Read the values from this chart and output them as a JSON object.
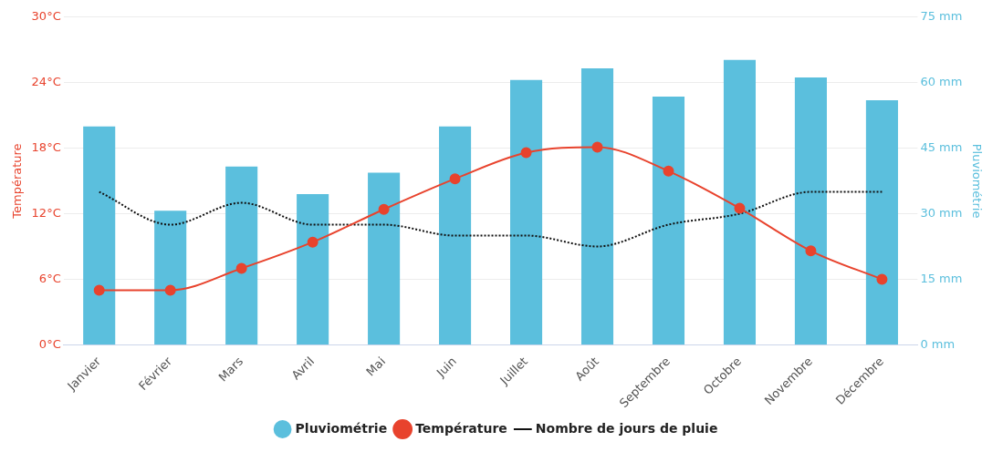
{
  "chart_data": {
    "type": "bar",
    "categories": [
      "Janvier",
      "Février",
      "Mars",
      "Avril",
      "Mai",
      "Juin",
      "Juillet",
      "Août",
      "Septembre",
      "Octobre",
      "Novembre",
      "Décembre"
    ],
    "ylabel": "Température",
    "y2label": "Pluviométrie",
    "series": [
      {
        "name": "Pluviométrie",
        "axis": "y2",
        "color": "#5bbfdd",
        "values": [
          50,
          30.7,
          40.8,
          34.5,
          39.4,
          50,
          60.6,
          63.3,
          56.8,
          65.2,
          61.2,
          56
        ]
      },
      {
        "name": "Température",
        "type": "line",
        "axis": "y",
        "color": "#e8432d",
        "marker": "circle",
        "line_style": "solid",
        "values": [
          5,
          5,
          7,
          9.4,
          12.4,
          15.2,
          17.6,
          18.1,
          15.9,
          12.5,
          8.6,
          6
        ]
      },
      {
        "name": "Nombre de jours de pluie",
        "type": "line",
        "axis": "y",
        "color": "#111111",
        "marker": "none",
        "line_style": "dotted",
        "values": [
          14,
          11,
          13,
          11,
          11,
          10,
          10,
          9,
          11,
          12,
          14,
          14
        ]
      }
    ],
    "ylim": [
      0,
      30
    ],
    "yticks": [
      {
        "value": 0,
        "label": "0°C"
      },
      {
        "value": 6,
        "label": "6°C"
      },
      {
        "value": 12,
        "label": "12°C"
      },
      {
        "value": 18,
        "label": "18°C"
      },
      {
        "value": 24,
        "label": "24°C"
      },
      {
        "value": 30,
        "label": "30°C"
      }
    ],
    "y2lim": [
      0,
      75
    ],
    "y2ticks": [
      {
        "value": 0,
        "label": "0 mm"
      },
      {
        "value": 15,
        "label": "15 mm"
      },
      {
        "value": 30,
        "label": "30 mm"
      },
      {
        "value": 45,
        "label": "45 mm"
      },
      {
        "value": 60,
        "label": "60 mm"
      },
      {
        "value": 75,
        "label": "75 mm"
      }
    ],
    "grid": "y",
    "legend": "bottom"
  }
}
